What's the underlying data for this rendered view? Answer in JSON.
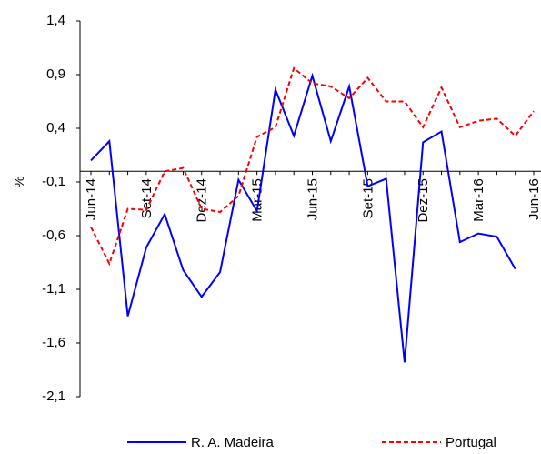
{
  "chart_data": {
    "type": "line",
    "categories": [
      "Jun-14",
      null,
      null,
      "Set-14",
      null,
      null,
      "Dez-14",
      null,
      null,
      "Mar-15",
      null,
      null,
      "Jun-15",
      null,
      null,
      "Set-15",
      null,
      null,
      "Dez-15",
      null,
      null,
      "Mar-16",
      null,
      null,
      "Jun-16"
    ],
    "series": [
      {
        "name": "R. A. Madeira",
        "color": "#0000ff",
        "values": [
          0.1,
          0.28,
          -1.35,
          -0.71,
          -0.4,
          -0.92,
          -1.17,
          -0.94,
          -0.08,
          -0.37,
          0.76,
          0.33,
          0.89,
          0.28,
          0.79,
          -0.14,
          -0.07,
          -1.78,
          0.27,
          0.37,
          -0.66,
          -0.58,
          -0.61,
          -0.91,
          null
        ]
      },
      {
        "name": "Portugal",
        "color": "#ff0000",
        "dashed": true,
        "values": [
          -0.52,
          -0.86,
          -0.35,
          -0.36,
          0.0,
          0.03,
          -0.35,
          -0.38,
          -0.23,
          0.32,
          0.41,
          0.96,
          0.82,
          0.79,
          0.68,
          0.87,
          0.65,
          0.65,
          0.41,
          0.78,
          0.41,
          0.47,
          0.49,
          0.33,
          0.56
        ]
      }
    ],
    "y_label": "%",
    "ylim": [
      -2.1,
      1.4
    ],
    "yticks": [
      {
        "value": -2.1,
        "label": "-2,1"
      },
      {
        "value": -1.6,
        "label": "-1,6"
      },
      {
        "value": -1.1,
        "label": "-1,1"
      },
      {
        "value": -0.6,
        "label": "-0,6"
      },
      {
        "value": -0.1,
        "label": "-0,1"
      },
      {
        "value": 0.4,
        "label": "0,4"
      },
      {
        "value": 0.9,
        "label": "0,9"
      },
      {
        "value": 1.4,
        "label": "1,4"
      }
    ],
    "legend": "bottom"
  }
}
